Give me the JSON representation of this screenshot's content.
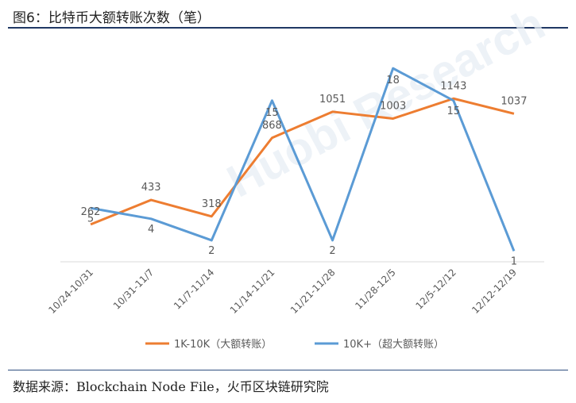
{
  "figure": {
    "title": "图6：比特币大额转账次数（笔）",
    "source": "数据来源：Blockchain Node File，火币区块链研究院",
    "watermark": "Huobi Research"
  },
  "colors": {
    "series_1": "#ED7D31",
    "series_2": "#5B9BD5",
    "axis": "#D9D9D9",
    "label": "#595959",
    "rule": "#1f3864"
  },
  "chart_data": {
    "type": "line",
    "title": "图6：比特币大额转账次数（笔）",
    "categories": [
      "10/24-10/31",
      "10/31-11/7",
      "11/7-11/14",
      "11/14-11/21",
      "11/21-11/28",
      "11/28-12/5",
      "12/5-12/12",
      "12/12-12/19"
    ],
    "series": [
      {
        "name": "1K-10K（大额转账）",
        "values": [
          262,
          433,
          318,
          868,
          1051,
          1003,
          1143,
          1037
        ],
        "value_labels": [
          "262",
          "433",
          "318",
          "868",
          "1051",
          "1003",
          "1143",
          "1037"
        ],
        "axis": "primary"
      },
      {
        "name": "10K+（超大额转账）",
        "values": [
          5,
          4,
          2,
          15,
          2,
          18,
          15,
          1
        ],
        "value_labels": [
          "5",
          "4",
          "2",
          "15",
          "2",
          "18",
          "15",
          "1"
        ],
        "axis": "secondary"
      }
    ],
    "primary_ylim": [
      0,
      1400
    ],
    "secondary_ylim": [
      0,
      18.6
    ],
    "y_axis_visible": false,
    "grid": false,
    "legend": "bottom"
  }
}
